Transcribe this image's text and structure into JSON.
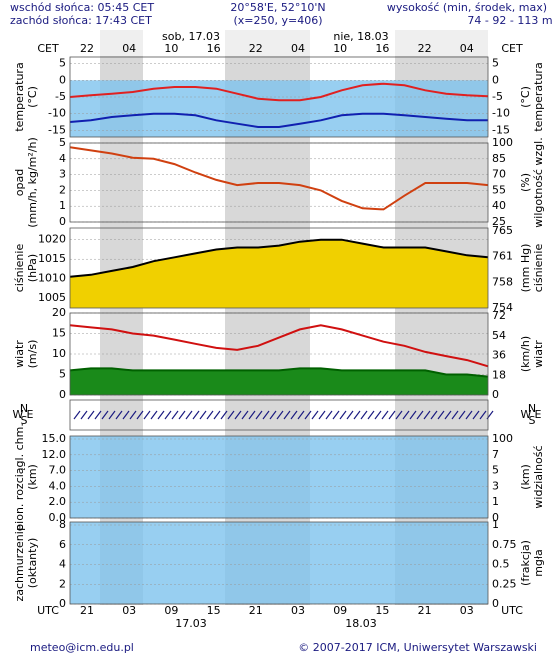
{
  "header": {
    "sunrise": "wschód słońca: 05:45 CET",
    "sunset": "zachód słońca: 17:43 CET",
    "coords": "20°58'E, 52°10'N",
    "grid_point": "(x=250, y=406)",
    "elevation_title": "wysokość (min, środek, max)",
    "elevation": "74 - 92 - 113 m"
  },
  "time": {
    "top_zone": "CET",
    "top_hours": [
      "22",
      "04",
      "10",
      "16",
      "22",
      "04",
      "10",
      "16",
      "22",
      "04"
    ],
    "days_top": [
      "sob, 17.03",
      "nie, 18.03"
    ],
    "bottom_zone": "UTC",
    "bottom_hours": [
      "21",
      "03",
      "09",
      "15",
      "21",
      "03",
      "09",
      "15",
      "21",
      "03"
    ],
    "days_bottom": [
      "17.03",
      "18.03"
    ]
  },
  "chart_data": [
    {
      "type": "line",
      "left_label": [
        "temperatura",
        "(°C)"
      ],
      "right_label": [
        "(°C)",
        "temperatura"
      ],
      "ylim": [
        -17,
        7
      ],
      "yticks": [
        5,
        0,
        -5,
        -10,
        -15
      ],
      "fill_below_zero": "#7ec3ee",
      "series": [
        {
          "color": "#e02020",
          "values": [
            -5,
            -4.5,
            -4,
            -3.5,
            -2.5,
            -2,
            -2,
            -2.5,
            -4,
            -5.5,
            -6,
            -6,
            -5,
            -3,
            -1.5,
            -1,
            -1.5,
            -3,
            -4,
            -4.5,
            -4.8
          ]
        },
        {
          "color": "#1020b0",
          "values": [
            -12.5,
            -12,
            -11,
            -10.5,
            -10,
            -10,
            -10.5,
            -12,
            -13,
            -14,
            -14,
            -13,
            -12,
            -10.5,
            -10,
            -10,
            -10.5,
            -11,
            -11.5,
            -12,
            -12
          ]
        }
      ]
    },
    {
      "type": "line",
      "left_label": [
        "opad",
        "(mm/h, kg/m²/h)"
      ],
      "right_label": [
        "(%)",
        "wilgotność wzgl."
      ],
      "ylim": [
        0,
        5
      ],
      "yticks": [
        5,
        4,
        3,
        2,
        1,
        0
      ],
      "y2lim": [
        25,
        100
      ],
      "y2ticks": [
        100,
        85,
        70,
        55,
        40,
        25
      ],
      "series": [
        {
          "color": "#d04010",
          "axis": "y2",
          "values": [
            96,
            93,
            90,
            86,
            85,
            80,
            72,
            65,
            60,
            62,
            62,
            60,
            55,
            45,
            38,
            37,
            50,
            62,
            62,
            62,
            60
          ]
        }
      ]
    },
    {
      "type": "area",
      "left_label": [
        "ciśnienie",
        "(hPa)"
      ],
      "right_label": [
        "(mm Hg)",
        "ciśnienie"
      ],
      "ylim": [
        1002.5,
        1023
      ],
      "yticks": [
        1020,
        1015,
        1010,
        1005
      ],
      "y2ticks": [
        765,
        761,
        758,
        754
      ],
      "series": [
        {
          "color": "#000000",
          "fill": "#f0d000",
          "values": [
            1010.5,
            1011,
            1012,
            1013,
            1014.5,
            1015.5,
            1016.5,
            1017.5,
            1018,
            1018,
            1018.5,
            1019.5,
            1020,
            1020,
            1019,
            1018,
            1018,
            1018,
            1017,
            1016,
            1015.5
          ]
        }
      ]
    },
    {
      "type": "area",
      "left_label": [
        "wiatr",
        "(m/s)"
      ],
      "right_label": [
        "(km/h)",
        "wiatr"
      ],
      "ylim": [
        0,
        20
      ],
      "yticks": [
        20,
        15,
        10,
        5,
        0
      ],
      "y2ticks": [
        72,
        54,
        36,
        18,
        0
      ],
      "series": [
        {
          "color": "#d01010",
          "values": [
            17,
            16.5,
            16,
            15,
            14.5,
            13.5,
            12.5,
            11.5,
            11,
            12,
            14,
            16,
            17,
            16,
            14.5,
            13,
            12,
            10.5,
            9.5,
            8.5,
            7
          ]
        },
        {
          "color": "#006000",
          "fill": "#1a8a1a",
          "values": [
            6,
            6.5,
            6.5,
            6,
            6,
            6,
            6,
            6,
            6,
            6,
            6,
            6.5,
            6.5,
            6,
            6,
            6,
            6,
            6,
            5,
            5,
            4.5
          ]
        }
      ]
    },
    {
      "type": "wind-direction",
      "compass": [
        "N",
        "W",
        "E",
        "S"
      ]
    },
    {
      "type": "index-scale",
      "left_label": [
        "pion. rozciągl. chm.",
        "(km)"
      ],
      "right_label": [
        "(km)",
        "widzialność"
      ],
      "yticks": [
        {
          "value": 15,
          "label": "15.0"
        },
        {
          "value": 12,
          "label": "12.0"
        },
        {
          "value": 7,
          "label": "7.0"
        },
        {
          "value": 4,
          "label": "4.0"
        },
        {
          "value": 2,
          "label": "2.0"
        },
        {
          "value": 0,
          "label": "0.0"
        }
      ],
      "y2ticks": [
        100,
        7,
        5,
        3,
        1,
        0
      ],
      "fill": "#7ec3ee"
    },
    {
      "type": "index-scale",
      "left_label": [
        "zachmurzenie",
        "(oktanty)"
      ],
      "right_label": [
        "(frakcja)",
        "mgła"
      ],
      "yticks": [
        8,
        6,
        4,
        2,
        0
      ],
      "y2ticks": [
        1,
        0.75,
        0.5,
        0.25,
        0
      ],
      "fill": "#7ec3ee"
    }
  ],
  "footer": {
    "email": "meteo@icm.edu.pl",
    "copyright": "© 2007-2017 ICM, Uniwersytet Warszawski"
  }
}
